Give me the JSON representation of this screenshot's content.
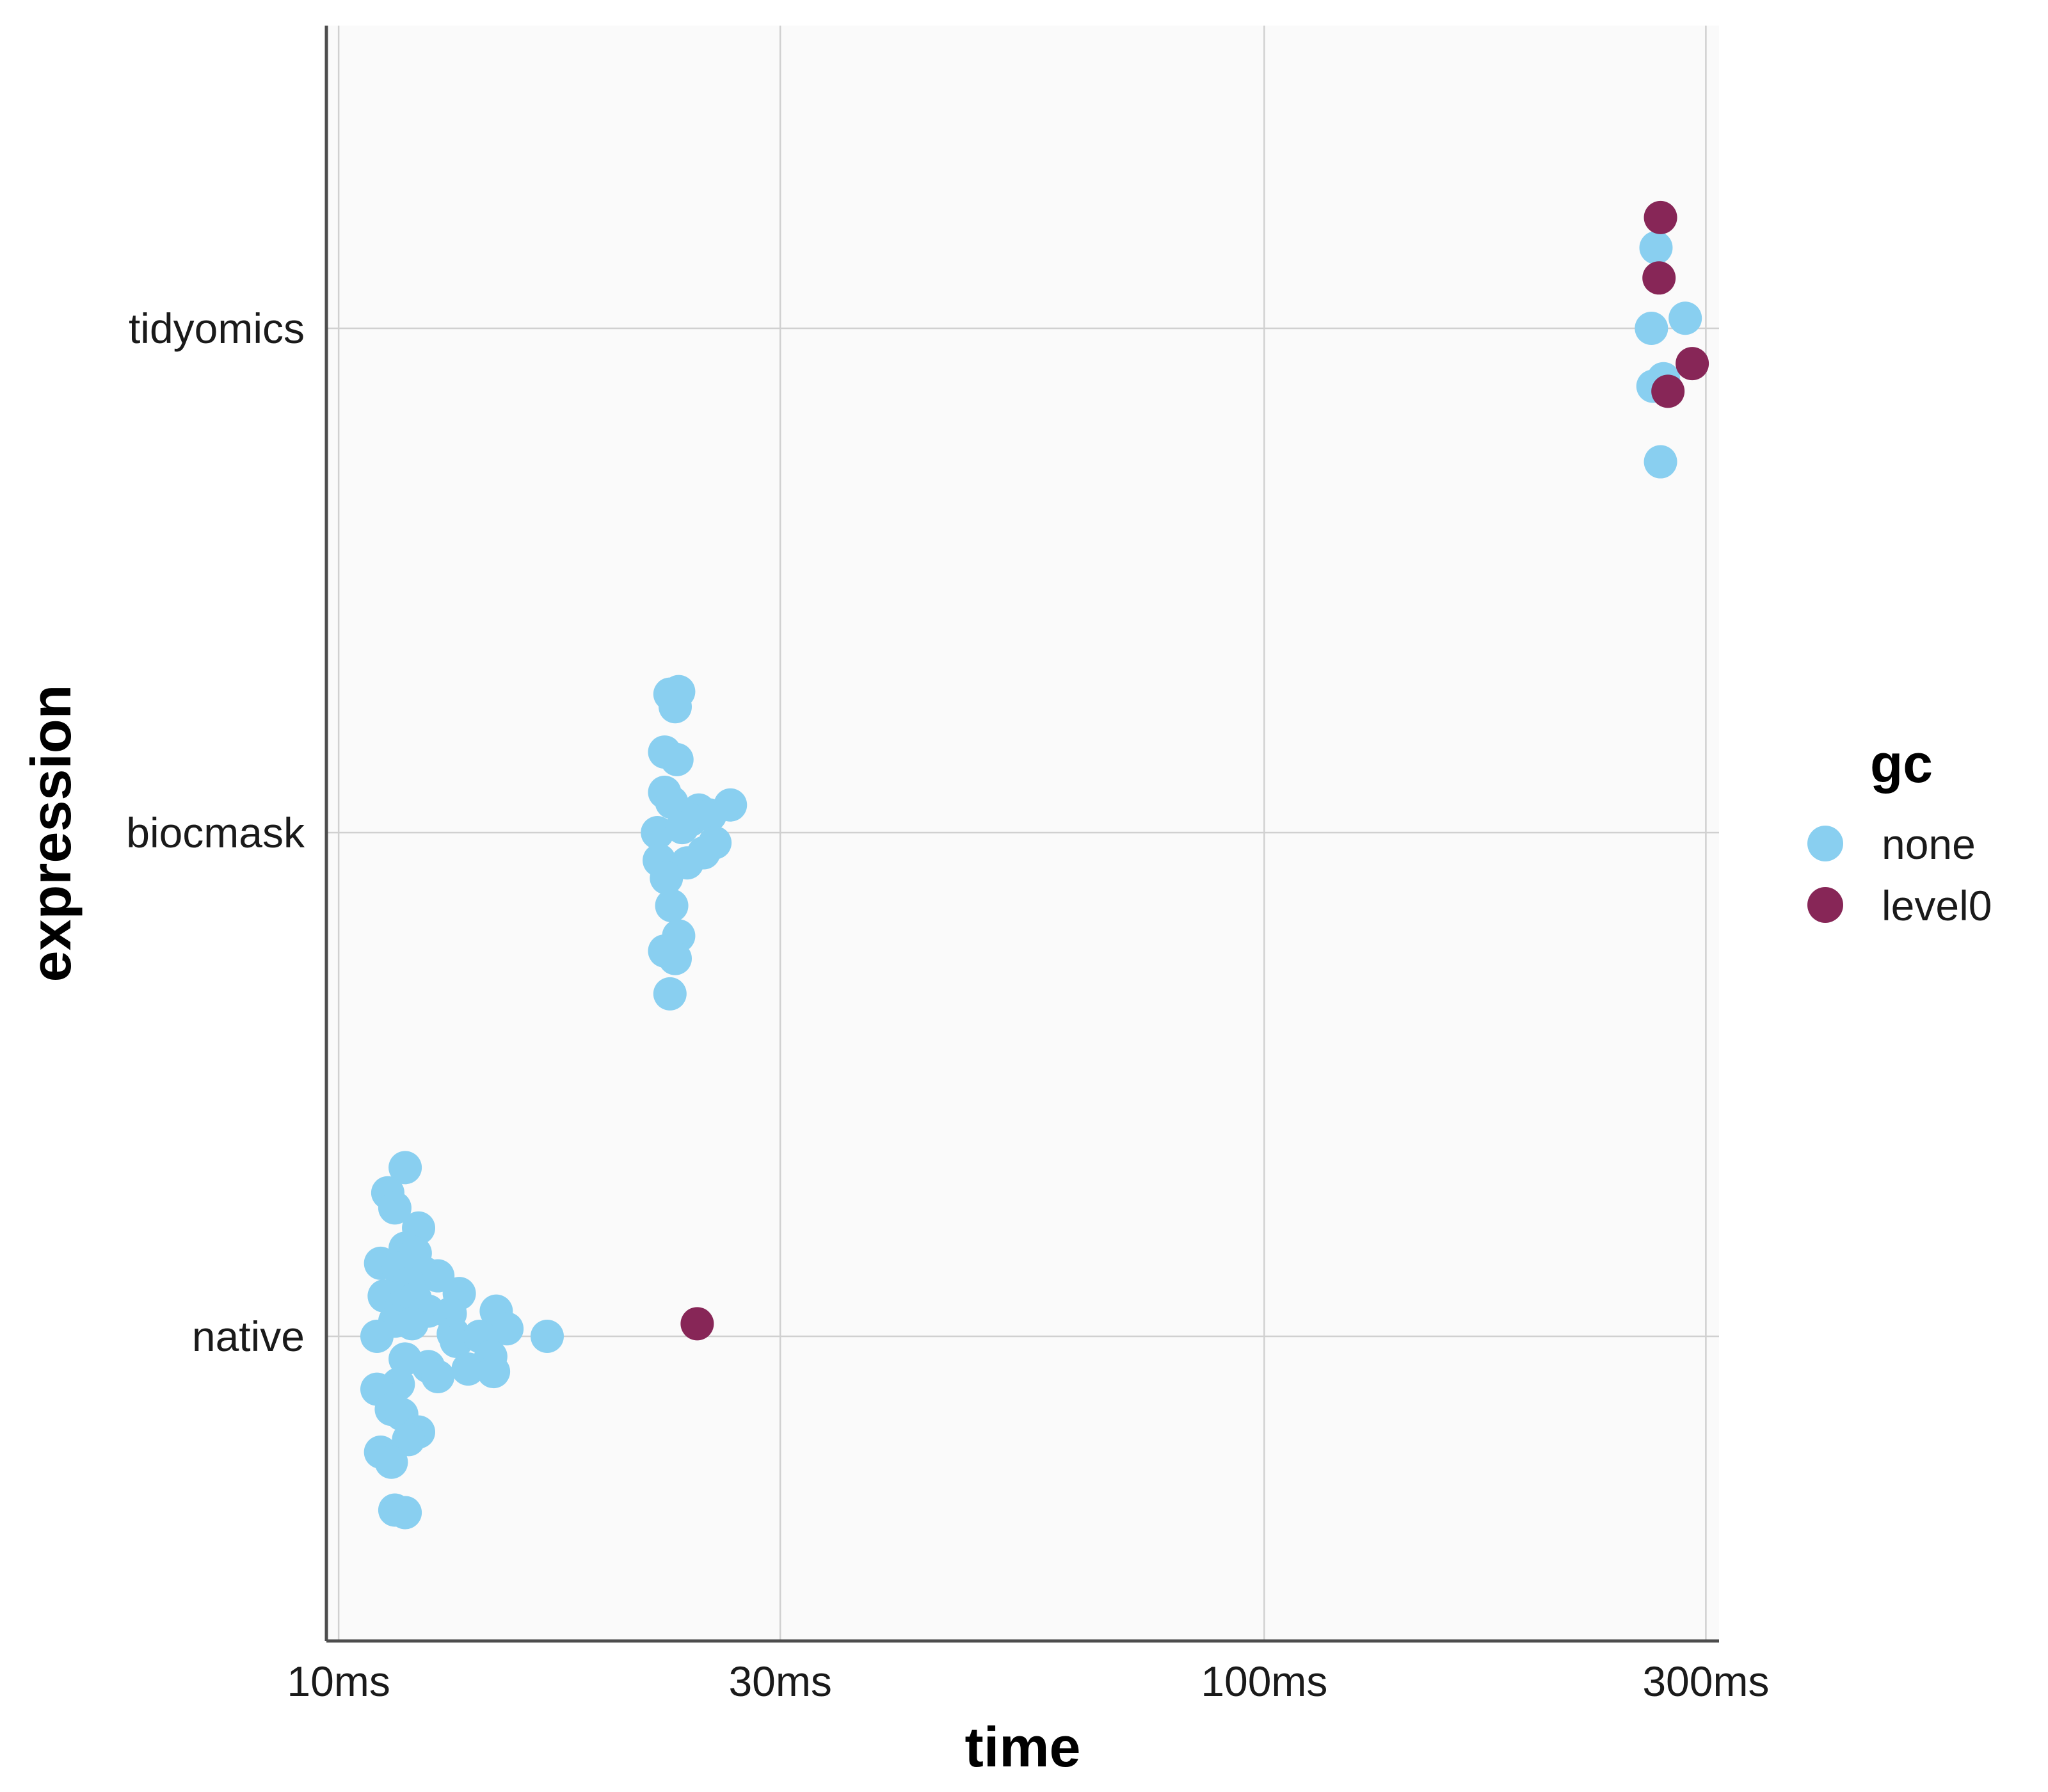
{
  "chart_data": {
    "type": "scatter",
    "xlabel": "time",
    "ylabel": "expression",
    "x_scale": "log10",
    "x_ticks": [
      {
        "value": 0.01,
        "label": "10ms"
      },
      {
        "value": 0.03,
        "label": "30ms"
      },
      {
        "value": 0.1,
        "label": "100ms"
      },
      {
        "value": 0.3,
        "label": "300ms"
      }
    ],
    "xlim_seconds": [
      0.0097,
      0.31
    ],
    "categories": [
      "native",
      "biocmask",
      "tidyomics"
    ],
    "grid": true,
    "legend": {
      "title": "gc",
      "position": "right",
      "entries": [
        {
          "label": "none",
          "color": "#89CFF0"
        },
        {
          "label": "level0",
          "color": "#872657"
        }
      ]
    },
    "colors": {
      "panel_background": "#FAFAFA",
      "gridline": "#D0D0D0",
      "axis_line": "#4D4D4D"
    },
    "series": [
      {
        "name": "none",
        "color": "#89CFF0",
        "points": [
          {
            "category": "tidyomics",
            "time": 0.265,
            "jitter": 0.16
          },
          {
            "category": "tidyomics",
            "time": 0.262,
            "jitter": 0.0
          },
          {
            "category": "tidyomics",
            "time": 0.285,
            "jitter": 0.02
          },
          {
            "category": "tidyomics",
            "time": 0.263,
            "jitter": -0.115
          },
          {
            "category": "tidyomics",
            "time": 0.27,
            "jitter": -0.1
          },
          {
            "category": "tidyomics",
            "time": 0.268,
            "jitter": -0.265
          },
          {
            "category": "biocmask",
            "time": 0.0228,
            "jitter": 0.275
          },
          {
            "category": "biocmask",
            "time": 0.0233,
            "jitter": 0.28
          },
          {
            "category": "biocmask",
            "time": 0.0231,
            "jitter": 0.25
          },
          {
            "category": "biocmask",
            "time": 0.0225,
            "jitter": 0.16
          },
          {
            "category": "biocmask",
            "time": 0.0232,
            "jitter": 0.145
          },
          {
            "category": "biocmask",
            "time": 0.0225,
            "jitter": 0.08
          },
          {
            "category": "biocmask",
            "time": 0.0229,
            "jitter": 0.06
          },
          {
            "category": "biocmask",
            "time": 0.0245,
            "jitter": 0.045
          },
          {
            "category": "biocmask",
            "time": 0.0265,
            "jitter": 0.055
          },
          {
            "category": "biocmask",
            "time": 0.0252,
            "jitter": 0.035
          },
          {
            "category": "biocmask",
            "time": 0.024,
            "jitter": 0.025
          },
          {
            "category": "biocmask",
            "time": 0.0221,
            "jitter": 0.0
          },
          {
            "category": "biocmask",
            "time": 0.0235,
            "jitter": 0.01
          },
          {
            "category": "biocmask",
            "time": 0.0255,
            "jitter": -0.02
          },
          {
            "category": "biocmask",
            "time": 0.0248,
            "jitter": -0.04
          },
          {
            "category": "biocmask",
            "time": 0.0222,
            "jitter": -0.055
          },
          {
            "category": "biocmask",
            "time": 0.0238,
            "jitter": -0.06
          },
          {
            "category": "biocmask",
            "time": 0.0226,
            "jitter": -0.09
          },
          {
            "category": "biocmask",
            "time": 0.0229,
            "jitter": -0.145
          },
          {
            "category": "biocmask",
            "time": 0.0233,
            "jitter": -0.205
          },
          {
            "category": "biocmask",
            "time": 0.0225,
            "jitter": -0.235
          },
          {
            "category": "biocmask",
            "time": 0.0231,
            "jitter": -0.25
          },
          {
            "category": "biocmask",
            "time": 0.0228,
            "jitter": -0.32
          },
          {
            "category": "native",
            "time": 0.0118,
            "jitter": 0.335
          },
          {
            "category": "native",
            "time": 0.0113,
            "jitter": 0.285
          },
          {
            "category": "native",
            "time": 0.0115,
            "jitter": 0.255
          },
          {
            "category": "native",
            "time": 0.0122,
            "jitter": 0.215
          },
          {
            "category": "native",
            "time": 0.0118,
            "jitter": 0.175
          },
          {
            "category": "native",
            "time": 0.0121,
            "jitter": 0.165
          },
          {
            "category": "native",
            "time": 0.0111,
            "jitter": 0.145
          },
          {
            "category": "native",
            "time": 0.0116,
            "jitter": 0.135
          },
          {
            "category": "native",
            "time": 0.0124,
            "jitter": 0.125
          },
          {
            "category": "native",
            "time": 0.0128,
            "jitter": 0.12
          },
          {
            "category": "native",
            "time": 0.0119,
            "jitter": 0.105
          },
          {
            "category": "native",
            "time": 0.0112,
            "jitter": 0.08
          },
          {
            "category": "native",
            "time": 0.0121,
            "jitter": 0.075
          },
          {
            "category": "native",
            "time": 0.0135,
            "jitter": 0.085
          },
          {
            "category": "native",
            "time": 0.0117,
            "jitter": 0.06
          },
          {
            "category": "native",
            "time": 0.0125,
            "jitter": 0.05
          },
          {
            "category": "native",
            "time": 0.0132,
            "jitter": 0.045
          },
          {
            "category": "native",
            "time": 0.0148,
            "jitter": 0.05
          },
          {
            "category": "native",
            "time": 0.0115,
            "jitter": 0.03
          },
          {
            "category": "native",
            "time": 0.012,
            "jitter": 0.025
          },
          {
            "category": "native",
            "time": 0.0152,
            "jitter": 0.015
          },
          {
            "category": "native",
            "time": 0.0133,
            "jitter": 0.005
          },
          {
            "category": "native",
            "time": 0.011,
            "jitter": 0.0
          },
          {
            "category": "native",
            "time": 0.0134,
            "jitter": -0.01
          },
          {
            "category": "native",
            "time": 0.0142,
            "jitter": 0.0
          },
          {
            "category": "native",
            "time": 0.0168,
            "jitter": 0.0
          },
          {
            "category": "native",
            "time": 0.0146,
            "jitter": -0.04
          },
          {
            "category": "native",
            "time": 0.0118,
            "jitter": -0.045
          },
          {
            "category": "native",
            "time": 0.0125,
            "jitter": -0.06
          },
          {
            "category": "native",
            "time": 0.0138,
            "jitter": -0.065
          },
          {
            "category": "native",
            "time": 0.0147,
            "jitter": -0.07
          },
          {
            "category": "native",
            "time": 0.0128,
            "jitter": -0.08
          },
          {
            "category": "native",
            "time": 0.0116,
            "jitter": -0.095
          },
          {
            "category": "native",
            "time": 0.011,
            "jitter": -0.105
          },
          {
            "category": "native",
            "time": 0.0114,
            "jitter": -0.145
          },
          {
            "category": "native",
            "time": 0.0117,
            "jitter": -0.155
          },
          {
            "category": "native",
            "time": 0.0122,
            "jitter": -0.19
          },
          {
            "category": "native",
            "time": 0.0119,
            "jitter": -0.205
          },
          {
            "category": "native",
            "time": 0.0111,
            "jitter": -0.23
          },
          {
            "category": "native",
            "time": 0.0114,
            "jitter": -0.25
          },
          {
            "category": "native",
            "time": 0.0115,
            "jitter": -0.345
          },
          {
            "category": "native",
            "time": 0.0118,
            "jitter": -0.35
          }
        ]
      },
      {
        "name": "level0",
        "color": "#872657",
        "points": [
          {
            "category": "tidyomics",
            "time": 0.268,
            "jitter": 0.22
          },
          {
            "category": "tidyomics",
            "time": 0.267,
            "jitter": 0.1
          },
          {
            "category": "tidyomics",
            "time": 0.29,
            "jitter": -0.07
          },
          {
            "category": "tidyomics",
            "time": 0.273,
            "jitter": -0.125
          },
          {
            "category": "native",
            "time": 0.0244,
            "jitter": 0.025
          }
        ]
      }
    ]
  }
}
